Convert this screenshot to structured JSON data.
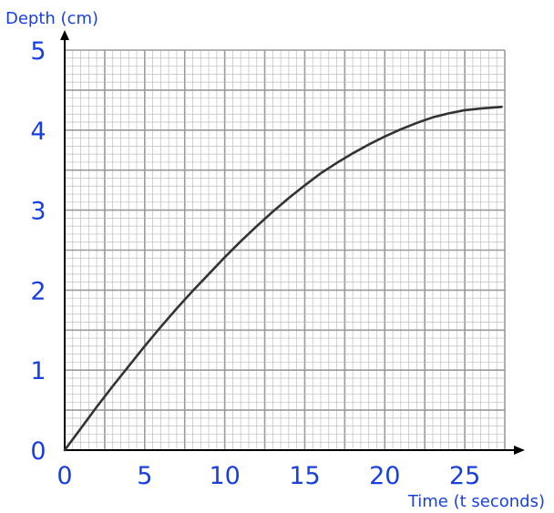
{
  "colors": {
    "label": "#1a3fe0",
    "axis": "#000000",
    "curve": "#333333",
    "grid_minor": "#bdbdbd",
    "grid_major": "#9a9a9a"
  },
  "chart_data": {
    "type": "line",
    "title": "",
    "xlabel": "Time (t seconds)",
    "ylabel": "Depth (cm)",
    "xlim": [
      0,
      27.5
    ],
    "ylim": [
      0,
      5
    ],
    "xticks": [
      0,
      5,
      10,
      15,
      20,
      25
    ],
    "yticks": [
      0,
      1,
      2,
      3,
      4,
      5
    ],
    "grid": true,
    "grid_minor_step_x": 0.5,
    "grid_minor_step_y": 0.1,
    "grid_major_step_x": 2.5,
    "grid_major_step_y": 0.5,
    "series": [
      {
        "x": [
          0,
          1,
          2,
          3,
          4,
          5,
          6,
          7,
          8,
          9,
          10,
          11,
          12,
          13,
          14,
          15,
          16,
          17,
          18,
          19,
          20,
          21,
          22,
          23,
          24,
          25,
          26,
          27.3
        ],
        "y": [
          0,
          0.27,
          0.54,
          0.8,
          1.05,
          1.3,
          1.54,
          1.77,
          1.99,
          2.2,
          2.41,
          2.61,
          2.8,
          2.98,
          3.15,
          3.31,
          3.46,
          3.59,
          3.71,
          3.82,
          3.92,
          4.01,
          4.09,
          4.16,
          4.21,
          4.25,
          4.27,
          4.29
        ]
      }
    ]
  }
}
